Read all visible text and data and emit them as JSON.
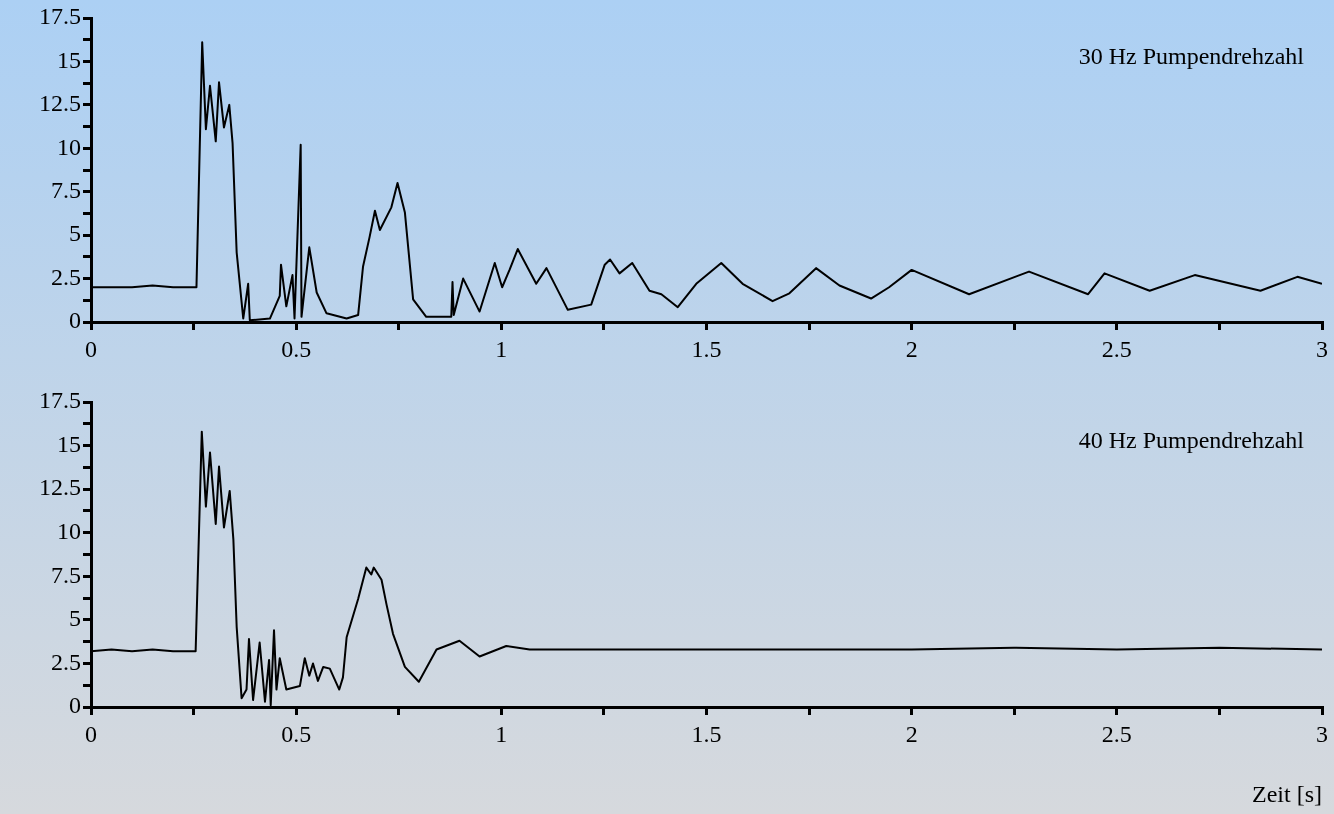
{
  "chart_data": [
    {
      "type": "line",
      "annotations": [
        "30 Hz Pumpendrehzahl"
      ],
      "xlim": [
        0,
        3
      ],
      "ylim": [
        0,
        17.5
      ],
      "xticks": [
        0,
        {
          "value": 0.25,
          "label": null
        },
        0.5,
        {
          "value": 0.75,
          "label": null
        },
        1,
        {
          "value": 1.25,
          "label": null
        },
        1.5,
        {
          "value": 1.75,
          "label": null
        },
        2,
        {
          "value": 2.25,
          "label": null
        },
        2.5,
        {
          "value": 2.75,
          "label": null
        },
        3
      ],
      "yticks": [
        0,
        {
          "value": 1.25,
          "label": null
        },
        2.5,
        {
          "value": 3.75,
          "label": null
        },
        5,
        {
          "value": 6.25,
          "label": null
        },
        7.5,
        {
          "value": 8.75,
          "label": null
        },
        10,
        {
          "value": 11.25,
          "label": null
        },
        12.5,
        {
          "value": 13.75,
          "label": null
        },
        15,
        {
          "value": 16.25,
          "label": null
        },
        17.5
      ],
      "series": [
        {
          "color": "#000000",
          "x": [
            0,
            0.05,
            0.1,
            0.15,
            0.2,
            0.25,
            0.257,
            0.271,
            0.28,
            0.29,
            0.304,
            0.312,
            0.324,
            0.337,
            0.345,
            0.355,
            0.371,
            0.383,
            0.387,
            0.436,
            0.46,
            0.463,
            0.476,
            0.491,
            0.496,
            0.511,
            0.513,
            0.532,
            0.55,
            0.574,
            0.623,
            0.651,
            0.663,
            0.679,
            0.692,
            0.704,
            0.732,
            0.747,
            0.765,
            0.785,
            0.817,
            0.878,
            0.881,
            0.884,
            0.907,
            0.947,
            0.984,
            1.002,
            1.02,
            1.04,
            1.085,
            1.11,
            1.162,
            1.219,
            1.252,
            1.265,
            1.288,
            1.319,
            1.361,
            1.39,
            1.43,
            1.475,
            1.536,
            1.588,
            1.661,
            1.702,
            1.767,
            1.824,
            1.901,
            1.945,
            2.0,
            2.14,
            2.286,
            2.43,
            2.47,
            2.58,
            2.69,
            2.85,
            2.94,
            3.0
          ],
          "values": [
            2.0,
            2.0,
            2.0,
            2.1,
            2.0,
            2.0,
            2.0,
            16.1,
            11.1,
            13.6,
            10.4,
            13.8,
            11.2,
            12.5,
            10.3,
            4.0,
            0.2,
            2.2,
            0.1,
            0.2,
            1.5,
            3.3,
            0.9,
            2.7,
            0.2,
            10.2,
            0.3,
            4.3,
            1.7,
            0.5,
            0.2,
            0.4,
            3.2,
            4.9,
            6.4,
            5.3,
            6.6,
            8.0,
            6.3,
            1.3,
            0.3,
            0.3,
            2.3,
            0.4,
            2.5,
            0.6,
            3.4,
            2.0,
            3.0,
            4.2,
            2.2,
            3.1,
            0.7,
            1.0,
            3.3,
            3.6,
            2.8,
            3.4,
            1.8,
            1.6,
            0.85,
            2.2,
            3.4,
            2.2,
            1.2,
            1.65,
            3.1,
            2.1,
            1.35,
            2.0,
            3.0,
            1.6,
            2.9,
            1.6,
            2.8,
            1.8,
            2.7,
            1.8,
            2.6,
            2.2
          ]
        }
      ]
    },
    {
      "type": "line",
      "annotations": [
        "40 Hz Pumpendrehzahl"
      ],
      "xlabel": "Zeit [s]",
      "xlim": [
        0,
        3
      ],
      "ylim": [
        0,
        17.5
      ],
      "xticks": [
        0,
        {
          "value": 0.25,
          "label": null
        },
        0.5,
        {
          "value": 0.75,
          "label": null
        },
        1,
        {
          "value": 1.25,
          "label": null
        },
        1.5,
        {
          "value": 1.75,
          "label": null
        },
        2,
        {
          "value": 2.25,
          "label": null
        },
        2.5,
        {
          "value": 2.75,
          "label": null
        },
        3
      ],
      "yticks": [
        0,
        {
          "value": 1.25,
          "label": null
        },
        2.5,
        {
          "value": 3.75,
          "label": null
        },
        5,
        {
          "value": 6.25,
          "label": null
        },
        7.5,
        {
          "value": 8.75,
          "label": null
        },
        10,
        {
          "value": 11.25,
          "label": null
        },
        12.5,
        {
          "value": 13.75,
          "label": null
        },
        15,
        {
          "value": 16.25,
          "label": null
        },
        17.5
      ],
      "series": [
        {
          "color": "#000000",
          "x": [
            0,
            0.05,
            0.1,
            0.15,
            0.2,
            0.255,
            0.27,
            0.28,
            0.29,
            0.304,
            0.312,
            0.324,
            0.338,
            0.347,
            0.355,
            0.367,
            0.379,
            0.385,
            0.395,
            0.411,
            0.424,
            0.434,
            0.438,
            0.446,
            0.452,
            0.46,
            0.476,
            0.509,
            0.521,
            0.532,
            0.541,
            0.553,
            0.566,
            0.582,
            0.605,
            0.614,
            0.623,
            0.651,
            0.671,
            0.683,
            0.689,
            0.708,
            0.72,
            0.736,
            0.765,
            0.799,
            0.842,
            0.898,
            0.947,
            1.012,
            1.069,
            1.25,
            1.5,
            1.75,
            2.0,
            2.25,
            2.5,
            2.75,
            3.0
          ],
          "values": [
            3.2,
            3.3,
            3.2,
            3.3,
            3.2,
            3.2,
            15.8,
            11.5,
            14.6,
            10.5,
            13.8,
            10.3,
            12.4,
            9.6,
            4.6,
            0.5,
            1.0,
            3.9,
            0.4,
            3.7,
            0.3,
            2.7,
            0.1,
            4.4,
            1.0,
            2.8,
            1.0,
            1.2,
            2.8,
            1.8,
            2.5,
            1.5,
            2.3,
            2.2,
            1.0,
            1.7,
            4.0,
            6.2,
            8.0,
            7.6,
            8.0,
            7.3,
            5.9,
            4.2,
            2.3,
            1.45,
            3.3,
            3.8,
            2.9,
            3.5,
            3.3,
            3.3,
            3.3,
            3.3,
            3.3,
            3.4,
            3.3,
            3.4,
            3.3
          ]
        }
      ]
    }
  ]
}
